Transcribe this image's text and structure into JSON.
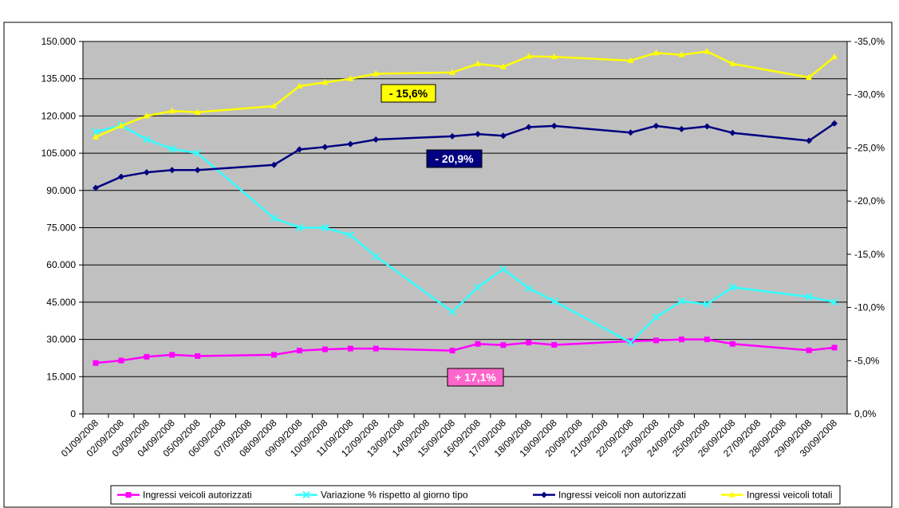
{
  "chart_data": {
    "type": "line",
    "categories": [
      "01/09/2008",
      "02/09/2008",
      "03/09/2008",
      "04/09/2008",
      "05/09/2008",
      "06/09/2008",
      "07/09/2008",
      "08/09/2008",
      "09/09/2008",
      "10/09/2008",
      "11/09/2008",
      "12/09/2008",
      "13/09/2008",
      "14/09/2008",
      "15/09/2008",
      "16/09/2008",
      "17/09/2008",
      "18/09/2008",
      "19/09/2008",
      "20/09/2008",
      "21/09/2008",
      "22/09/2008",
      "23/09/2008",
      "24/09/2008",
      "25/09/2008",
      "26/09/2008",
      "27/09/2008",
      "28/09/2008",
      "29/09/2008",
      "30/09/2008"
    ],
    "x": [
      "01/09/2008",
      "02/09/2008",
      "03/09/2008",
      "04/09/2008",
      "05/09/2008",
      "08/09/2008",
      "09/09/2008",
      "10/09/2008",
      "11/09/2008",
      "12/09/2008",
      "15/09/2008",
      "16/09/2008",
      "17/09/2008",
      "18/09/2008",
      "19/09/2008",
      "22/09/2008",
      "23/09/2008",
      "24/09/2008",
      "25/09/2008",
      "26/09/2008",
      "29/09/2008",
      "30/09/2008"
    ],
    "series": [
      {
        "name": "Ingressi veicoli autorizzati",
        "color": "#ff00ff",
        "marker": "square",
        "values": [
          20500,
          21500,
          23000,
          23800,
          23300,
          23800,
          25500,
          26000,
          26300,
          26300,
          25500,
          28200,
          27700,
          28700,
          27800,
          29300,
          29600,
          30000,
          30000,
          28200,
          25600,
          26700
        ]
      },
      {
        "name": "Variazione % rispetto al giorno tipo",
        "color": "#33ffff",
        "marker": "cross",
        "axis": "y2",
        "values": [
          -26.5,
          -27.1,
          -25.8,
          -24.9,
          -24.5,
          -18.4,
          -17.5,
          -17.5,
          -16.8,
          -14.8,
          -9.6,
          -11.9,
          -13.6,
          -11.8,
          -10.6,
          -6.7,
          -9.1,
          -10.6,
          -10.3,
          -11.9,
          -11.0,
          -10.5
        ]
      },
      {
        "name": "Ingressi veicoli non autorizzati",
        "color": "#000080",
        "marker": "diamond",
        "values": [
          91000,
          95500,
          97300,
          98200,
          98200,
          100300,
          106500,
          107500,
          108700,
          110500,
          111800,
          112700,
          112000,
          115500,
          116000,
          113300,
          116000,
          114700,
          115800,
          113200,
          110000,
          117000
        ]
      },
      {
        "name": "Ingressi veicoli totali",
        "color": "#ffff00",
        "marker": "triangle",
        "values": [
          111500,
          116000,
          120000,
          122000,
          121500,
          124000,
          132000,
          133500,
          135000,
          137000,
          137500,
          141000,
          139800,
          144000,
          143800,
          142300,
          145400,
          144600,
          146000,
          141000,
          135500,
          143800
        ]
      }
    ],
    "ylim": [
      0,
      150000
    ],
    "yticks": [
      0,
      {
        "value": 15000,
        "label": "15.000"
      },
      {
        "value": 30000,
        "label": "30.000"
      },
      {
        "value": 45000,
        "label": "45.000"
      },
      {
        "value": 60000,
        "label": "60.000"
      },
      {
        "value": 75000,
        "label": "75.000"
      },
      {
        "value": 90000,
        "label": "90.000"
      },
      {
        "value": 105000,
        "label": "105.000"
      },
      {
        "value": 120000,
        "label": "120.000"
      },
      {
        "value": 135000,
        "label": "135.000"
      },
      {
        "value": 150000,
        "label": "150.000"
      }
    ],
    "y2lim": [
      0,
      -35
    ],
    "y2ticks": [
      {
        "value": 0,
        "label": "0,0%"
      },
      {
        "value": -5,
        "label": "-5,0%"
      },
      {
        "value": -10,
        "label": "-10,0%"
      },
      {
        "value": -15,
        "label": "-15,0%"
      },
      {
        "value": -20,
        "label": "-20,0%"
      },
      {
        "value": -25,
        "label": "-25,0%"
      },
      {
        "value": -30,
        "label": "-30,0%"
      },
      {
        "value": -35,
        "label": "-35,0%"
      }
    ],
    "grid": true,
    "legend": "bottom",
    "annotations": [
      {
        "text": "- 15,6%",
        "background": "#ffff00",
        "color": "#000000"
      },
      {
        "text": "- 20,9%",
        "background": "#000080",
        "color": "#ffffff"
      },
      {
        "text": "+ 17,1%",
        "background": "#ff66cc",
        "color": "#ffffff"
      }
    ]
  }
}
